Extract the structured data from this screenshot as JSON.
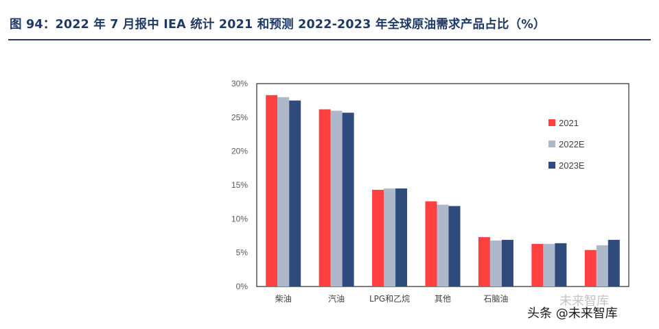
{
  "title": "图 94：2022 年 7 月报中 IEA 统计 2021 和预测 2022-2023 年全球原油需求产品占比（%）",
  "watermark": "头条 @未来智库",
  "watermark_ghost": "未来智库",
  "colors": {
    "title": "#1f3864",
    "axis": "#000000"
  },
  "chart_data": {
    "type": "bar",
    "title": "",
    "xlabel": "",
    "ylabel": "",
    "ylim": [
      0,
      30
    ],
    "yticks": [
      0,
      5,
      10,
      15,
      20,
      25,
      30
    ],
    "ytick_labels": [
      "0%",
      "5%",
      "10%",
      "15%",
      "20%",
      "25%",
      "30%"
    ],
    "grid": false,
    "legend_position": "right",
    "categories": [
      "柴油",
      "汽油",
      "LPG和乙烷",
      "其他",
      "石脑油",
      "",
      ""
    ],
    "series": [
      {
        "name": "2021",
        "color": "#ff4040",
        "values": [
          28.3,
          26.2,
          14.3,
          12.6,
          7.3,
          6.3,
          5.4
        ]
      },
      {
        "name": "2022E",
        "color": "#adb9ca",
        "values": [
          28.0,
          26.0,
          14.5,
          12.1,
          6.8,
          6.3,
          6.1
        ]
      },
      {
        "name": "2023E",
        "color": "#2f4b7c",
        "values": [
          27.5,
          25.7,
          14.5,
          11.9,
          6.9,
          6.4,
          6.9
        ]
      }
    ]
  }
}
